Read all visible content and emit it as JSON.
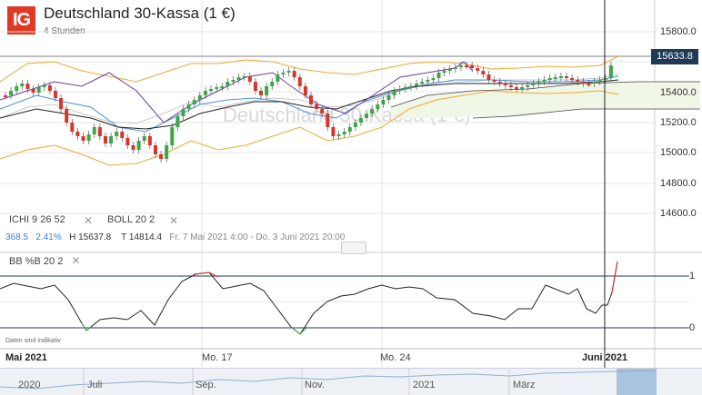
{
  "header": {
    "logo_text": "IG",
    "title": "Deutschland 30-Kassa (1 €)",
    "timeframe": "4 Stunden",
    "watermark": "Deutschland 30-Kassa (1 €)"
  },
  "price_axis": {
    "ticks": [
      "15800.0",
      "15600.0",
      "15400.0",
      "15200.0",
      "15000.0",
      "14800.0",
      "14600.0"
    ],
    "current_price": "15633.8"
  },
  "indicators": {
    "ichimoku_label": "ICHI 9 26 52",
    "bollinger_label": "BOLL 20 2",
    "bb_percent_label": "BB %B 20 2",
    "bb_ticks": [
      "1",
      "0"
    ]
  },
  "stats": {
    "change": "368.5",
    "change_pct": "2.41%",
    "high": "H 15637.8",
    "low": "T 14814.4",
    "range": "Fr. 7 Mai 2021 4:00 - Do. 3 Juni 2021 20:00"
  },
  "disclaimer": "Daten sind indikativ",
  "time_axis": {
    "labels": [
      "Mai 2021",
      "Mo. 17",
      "Mo. 24",
      "Juni 2021"
    ]
  },
  "navigator": {
    "labels": [
      "2020",
      "Juli",
      "Sep.",
      "Nov.",
      "2021",
      "März"
    ]
  },
  "colors": {
    "up": "#3aa847",
    "down": "#d9352a",
    "bollinger": "#f0a830",
    "tenkan": "#4a90e2",
    "kijun": "#6a3d9a",
    "chikou": "#1a1a1a",
    "cloud": "#f2f7e8",
    "accent": "#e03a24"
  }
}
